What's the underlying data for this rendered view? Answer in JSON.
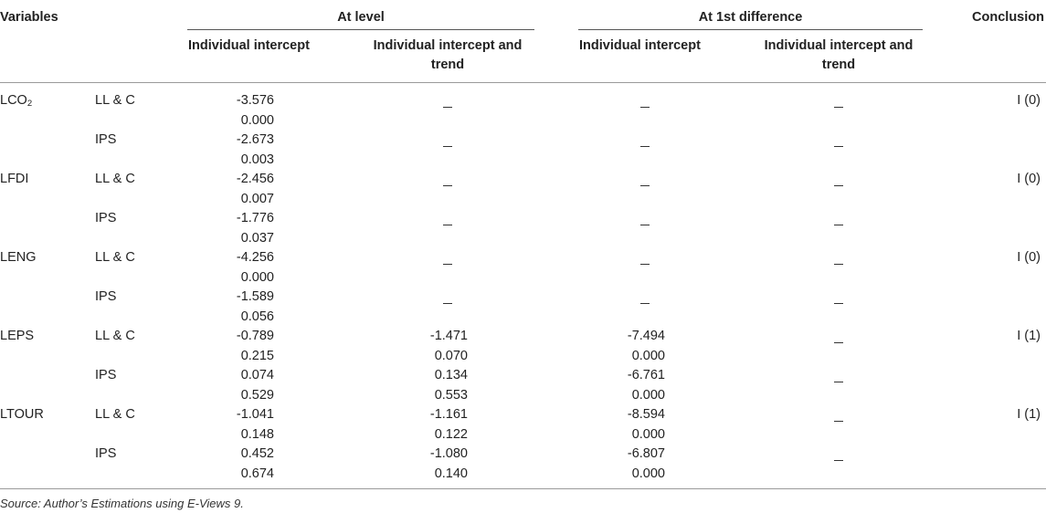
{
  "header": {
    "variables": "Variables",
    "at_level": "At level",
    "at_first_difference": "At 1st difference",
    "conclusion": "Conclusion",
    "individual_intercept": "Individual intercept",
    "individual_intercept_and_trend_line1": "Individual intercept and",
    "individual_intercept_and_trend_line2": "trend"
  },
  "dash_symbol": "–",
  "rows": [
    {
      "variable": "LCO",
      "variable_sub": "2",
      "conclusion": "I (0)",
      "tests": [
        {
          "test": "LL & C",
          "level_intercept": [
            "-3.576",
            "0.000"
          ]
        },
        {
          "test": "IPS",
          "level_intercept": [
            "-2.673",
            "0.003"
          ]
        }
      ]
    },
    {
      "variable": "LFDI",
      "conclusion": "I (0)",
      "tests": [
        {
          "test": "LL & C",
          "level_intercept": [
            "-2.456",
            "0.007"
          ]
        },
        {
          "test": "IPS",
          "level_intercept": [
            "-1.776",
            "0.037"
          ]
        }
      ]
    },
    {
      "variable": "LENG",
      "conclusion": "I (0)",
      "tests": [
        {
          "test": "LL & C",
          "level_intercept": [
            "-4.256",
            "0.000"
          ]
        },
        {
          "test": "IPS",
          "level_intercept": [
            "-1.589",
            "0.056"
          ]
        }
      ]
    },
    {
      "variable": "LEPS",
      "conclusion": "I (1)",
      "tests": [
        {
          "test": "LL & C",
          "level_intercept": [
            "-0.789",
            "0.215"
          ],
          "level_intercept_trend": [
            "-1.471",
            "0.070"
          ],
          "diff_intercept": [
            "-7.494",
            "0.000"
          ]
        },
        {
          "test": "IPS",
          "level_intercept": [
            "0.074",
            "0.529"
          ],
          "level_intercept_trend": [
            "0.134",
            "0.553"
          ],
          "diff_intercept": [
            "-6.761",
            "0.000"
          ]
        }
      ]
    },
    {
      "variable": "LTOUR",
      "conclusion": "I (1)",
      "tests": [
        {
          "test": "LL & C",
          "level_intercept": [
            "-1.041",
            "0.148"
          ],
          "level_intercept_trend": [
            "-1.161",
            "0.122"
          ],
          "diff_intercept": [
            "-8.594",
            "0.000"
          ]
        },
        {
          "test": "IPS",
          "level_intercept": [
            "0.452",
            "0.674"
          ],
          "level_intercept_trend": [
            "-1.080",
            "0.140"
          ],
          "diff_intercept": [
            "-6.807",
            "0.000"
          ]
        }
      ]
    }
  ],
  "source_note": "Source: Author’s Estimations using E-Views 9."
}
